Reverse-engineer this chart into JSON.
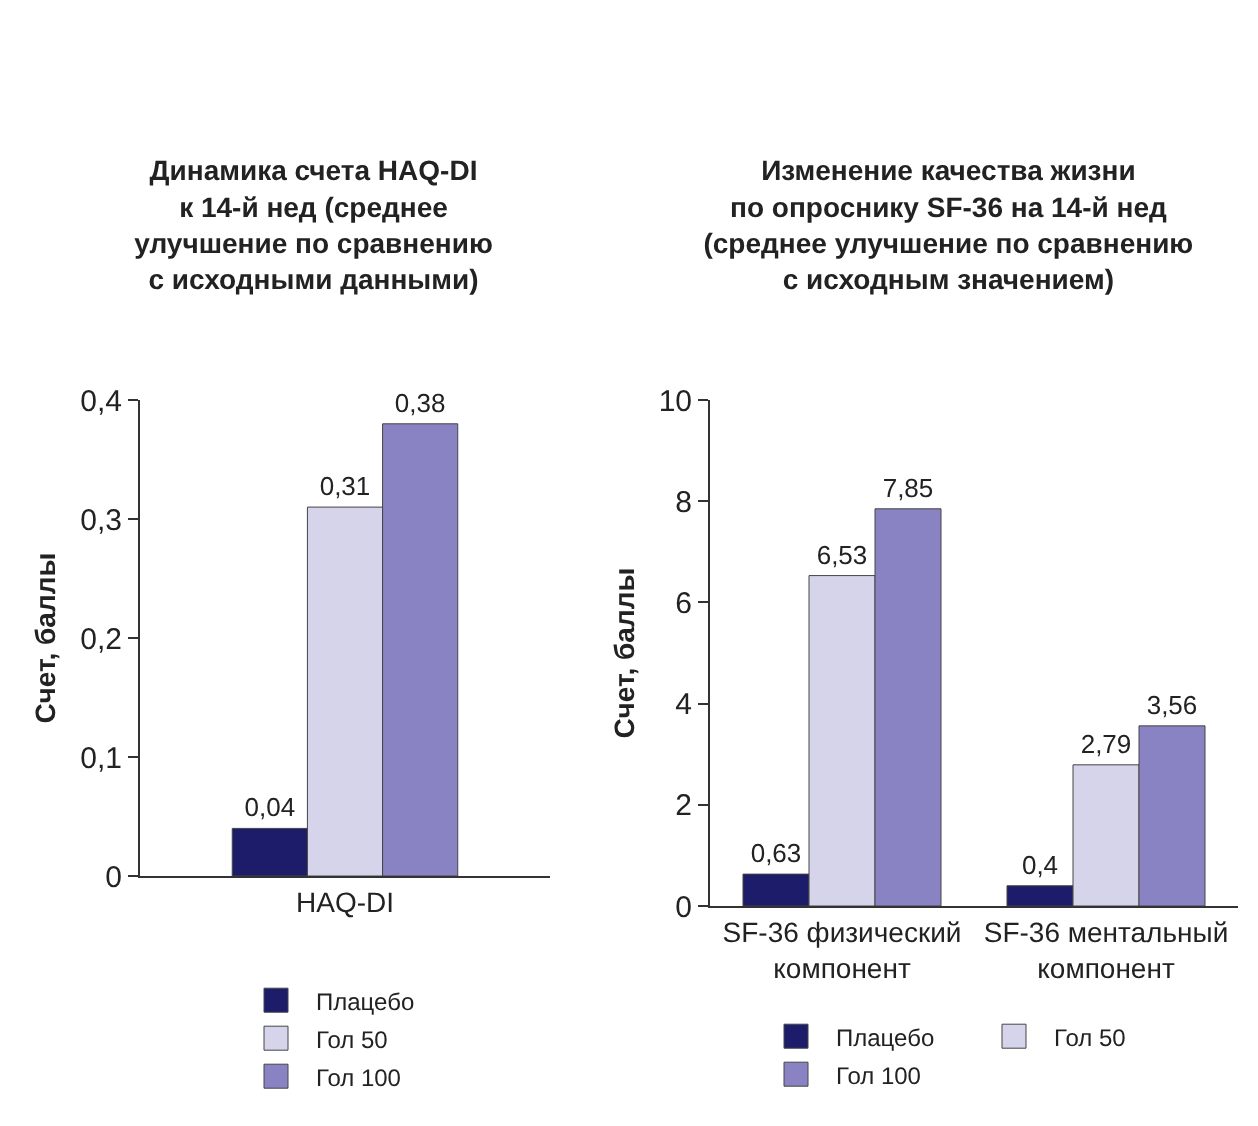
{
  "chart_data": [
    {
      "type": "bar",
      "title": "Динамика счета HAQ-DI\nк 14-й нед (среднее\nулучшение по сравнению\nс исходными данными)",
      "ylabel": "Счет, баллы",
      "categories": [
        "HAQ-DI"
      ],
      "ylim": [
        0,
        0.4
      ],
      "yticks": [
        0,
        {
          "value": 0.1,
          "label": "0,1"
        },
        {
          "value": 0.2,
          "label": "0,2"
        },
        {
          "value": 0.3,
          "label": "0,3"
        },
        {
          "value": 0.4,
          "label": "0,4"
        }
      ],
      "grid": false,
      "legend": "bottom",
      "series": [
        {
          "name": "Плацебо",
          "color": "#1c1c6b",
          "values": [
            0.04
          ],
          "value_labels": [
            "0,04"
          ]
        },
        {
          "name": "Гол 50",
          "color": "#d5d4ea",
          "values": [
            0.31
          ],
          "value_labels": [
            "0,31"
          ]
        },
        {
          "name": "Гол 100",
          "color": "#8983c3",
          "values": [
            0.38
          ],
          "value_labels": [
            "0,38"
          ]
        }
      ]
    },
    {
      "type": "bar",
      "title": "Изменение качества жизни\nпо опроснику SF-36 на 14-й нед\n(среднее улучшение по сравнению\nс исходным значением)",
      "ylabel": "Счет, баллы",
      "categories": [
        "SF-36 физический\nкомпонент",
        "SF-36 ментальный\nкомпонент"
      ],
      "ylim": [
        0,
        10
      ],
      "yticks": [
        0,
        2,
        4,
        6,
        8,
        10
      ],
      "grid": false,
      "legend": "bottom",
      "series": [
        {
          "name": "Плацебо",
          "color": "#1c1c6b",
          "values": [
            0.63,
            0.4
          ],
          "value_labels": [
            "0,63",
            "0,4"
          ]
        },
        {
          "name": "Гол 50",
          "color": "#d5d4ea",
          "values": [
            6.53,
            2.79
          ],
          "value_labels": [
            "6,53",
            "2,79"
          ]
        },
        {
          "name": "Гол 100",
          "color": "#8983c3",
          "values": [
            7.85,
            3.56
          ],
          "value_labels": [
            "7,85",
            "3,56"
          ]
        }
      ]
    }
  ]
}
